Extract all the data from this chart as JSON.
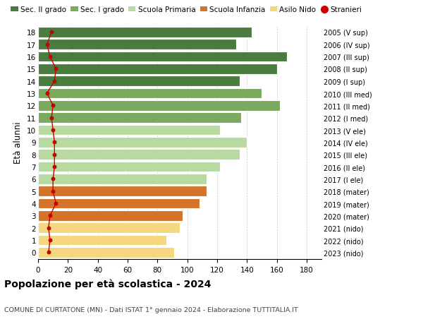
{
  "ages": [
    18,
    17,
    16,
    15,
    14,
    13,
    12,
    11,
    10,
    9,
    8,
    7,
    6,
    5,
    4,
    3,
    2,
    1,
    0
  ],
  "bar_values": [
    143,
    133,
    167,
    160,
    135,
    150,
    162,
    136,
    122,
    140,
    135,
    122,
    113,
    113,
    108,
    97,
    95,
    86,
    91
  ],
  "stranieri": [
    9,
    6,
    8,
    12,
    11,
    6,
    10,
    9,
    10,
    11,
    11,
    11,
    10,
    10,
    12,
    8,
    7,
    8,
    7
  ],
  "right_labels": [
    "2005 (V sup)",
    "2006 (IV sup)",
    "2007 (III sup)",
    "2008 (II sup)",
    "2009 (I sup)",
    "2010 (III med)",
    "2011 (II med)",
    "2012 (I med)",
    "2013 (V ele)",
    "2014 (IV ele)",
    "2015 (III ele)",
    "2016 (II ele)",
    "2017 (I ele)",
    "2018 (mater)",
    "2019 (mater)",
    "2020 (mater)",
    "2021 (nido)",
    "2022 (nido)",
    "2023 (nido)"
  ],
  "bar_colors": [
    "#4a7c3f",
    "#4a7c3f",
    "#4a7c3f",
    "#4a7c3f",
    "#4a7c3f",
    "#7aaa5e",
    "#7aaa5e",
    "#7aaa5e",
    "#b8d9a0",
    "#b8d9a0",
    "#b8d9a0",
    "#b8d9a0",
    "#b8d9a0",
    "#d4732a",
    "#d4732a",
    "#d4732a",
    "#f5d87e",
    "#f5d87e",
    "#f5d87e"
  ],
  "legend_labels": [
    "Sec. II grado",
    "Sec. I grado",
    "Scuola Primaria",
    "Scuola Infanzia",
    "Asilo Nido",
    "Stranieri"
  ],
  "legend_colors": [
    "#4a7c3f",
    "#7aaa5e",
    "#b8d9a0",
    "#d4732a",
    "#f5d87e",
    "#cc0000"
  ],
  "ylabel": "Età alunni",
  "title": "Popolazione per età scolastica - 2024",
  "subtitle": "COMUNE DI CURTATONE (MN) - Dati ISTAT 1° gennaio 2024 - Elaborazione TUTTITALIA.IT",
  "xlim": [
    0,
    190
  ],
  "xticks": [
    0,
    20,
    40,
    60,
    80,
    100,
    120,
    140,
    160,
    180
  ],
  "bg_color": "#ffffff",
  "grid_color": "#cccccc",
  "stranieri_color": "#cc0000",
  "bar_height": 0.85
}
